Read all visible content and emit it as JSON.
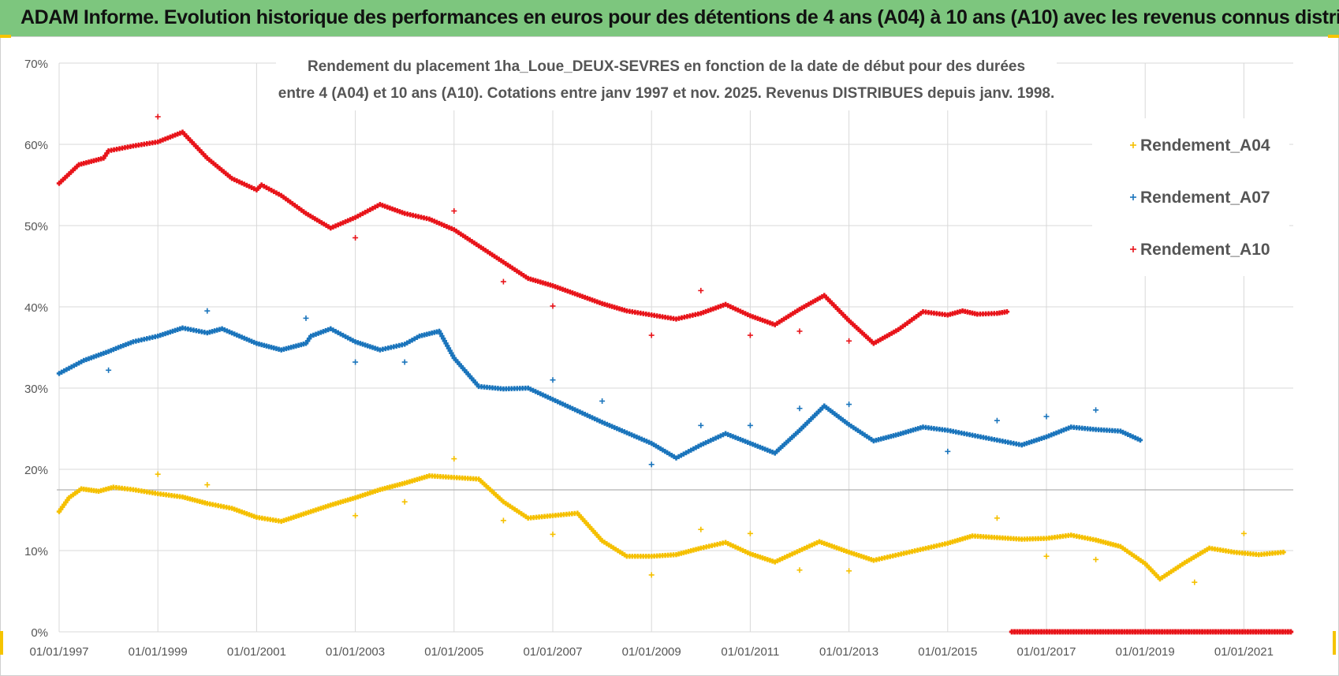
{
  "banner": {
    "title": "ADAM Informe. Evolution historique des performances en euros pour des détentions de 4 ans (A04) à 10 ans (A10) avec les revenus connus distribués"
  },
  "chart_data": {
    "type": "scatter",
    "title_line1": "Rendement du placement 1ha_Loue_DEUX-SEVRES en fonction de la date de début pour des durées",
    "title_line2": "entre 4 (A04) et 10 ans (A10).  Cotations entre janv 1997 et nov. 2025. Revenus DISTRIBUES depuis janv. 1998.",
    "x_tick_labels": [
      "01/01/1997",
      "01/01/1999",
      "01/01/2001",
      "01/01/2003",
      "01/01/2005",
      "01/01/2007",
      "01/01/2009",
      "01/01/2011",
      "01/01/2013",
      "01/01/2015",
      "01/01/2017",
      "01/01/2019",
      "01/01/2021"
    ],
    "xlim": [
      1997.0,
      2022.0
    ],
    "ylim": [
      0,
      70
    ],
    "y_tick_labels": [
      "0%",
      "10%",
      "20%",
      "30%",
      "40%",
      "50%",
      "60%",
      "70%"
    ],
    "y_tick_values": [
      0,
      10,
      20,
      30,
      40,
      50,
      60,
      70
    ],
    "grid": true,
    "legend_position": "top-right",
    "series": [
      {
        "name": "Rendement_A04",
        "color": "#f5c000",
        "points": [
          [
            1997.0,
            14.8
          ],
          [
            1997.2,
            16.5
          ],
          [
            1997.45,
            17.6
          ],
          [
            1997.8,
            17.3
          ],
          [
            1998.1,
            17.8
          ],
          [
            1998.5,
            17.5
          ],
          [
            1999.0,
            17.0
          ],
          [
            1999.5,
            16.6
          ],
          [
            2000.0,
            15.8
          ],
          [
            2000.5,
            15.2
          ],
          [
            2001.0,
            14.1
          ],
          [
            2001.5,
            13.6
          ],
          [
            2002.0,
            14.6
          ],
          [
            2002.5,
            15.6
          ],
          [
            2003.0,
            16.5
          ],
          [
            2003.5,
            17.5
          ],
          [
            2004.0,
            18.3
          ],
          [
            2004.5,
            19.2
          ],
          [
            2005.0,
            19.0
          ],
          [
            2005.5,
            18.8
          ],
          [
            2006.0,
            16.0
          ],
          [
            2006.5,
            14.0
          ],
          [
            2007.0,
            14.3
          ],
          [
            2007.5,
            14.6
          ],
          [
            2008.0,
            11.2
          ],
          [
            2008.5,
            9.3
          ],
          [
            2009.0,
            9.3
          ],
          [
            2009.5,
            9.5
          ],
          [
            2010.0,
            10.3
          ],
          [
            2010.5,
            11.0
          ],
          [
            2011.0,
            9.6
          ],
          [
            2011.5,
            8.6
          ],
          [
            2012.0,
            10.0
          ],
          [
            2012.4,
            11.1
          ],
          [
            2013.0,
            9.8
          ],
          [
            2013.5,
            8.8
          ],
          [
            2014.0,
            9.5
          ],
          [
            2014.5,
            10.2
          ],
          [
            2015.0,
            10.9
          ],
          [
            2015.5,
            11.8
          ],
          [
            2016.0,
            11.6
          ],
          [
            2016.5,
            11.4
          ],
          [
            2017.0,
            11.5
          ],
          [
            2017.5,
            11.9
          ],
          [
            2018.0,
            11.3
          ],
          [
            2018.5,
            10.5
          ],
          [
            2019.0,
            8.4
          ],
          [
            2019.3,
            6.5
          ],
          [
            2019.8,
            8.5
          ],
          [
            2020.3,
            10.3
          ],
          [
            2020.8,
            9.8
          ],
          [
            2021.3,
            9.5
          ],
          [
            2021.8,
            9.8
          ]
        ],
        "outliers": [
          [
            1999.0,
            19.4
          ],
          [
            2000.0,
            18.1
          ],
          [
            2003.0,
            14.3
          ],
          [
            2004.0,
            16.0
          ],
          [
            2005.0,
            21.3
          ],
          [
            2006.0,
            13.7
          ],
          [
            2007.0,
            12.0
          ],
          [
            2009.0,
            7.0
          ],
          [
            2010.0,
            12.6
          ],
          [
            2011.0,
            12.1
          ],
          [
            2012.0,
            7.6
          ],
          [
            2013.0,
            7.5
          ],
          [
            2016.0,
            14.0
          ],
          [
            2017.0,
            9.3
          ],
          [
            2018.0,
            8.9
          ],
          [
            2020.0,
            6.1
          ],
          [
            2021.0,
            12.1
          ]
        ]
      },
      {
        "name": "Rendement_A07",
        "color": "#1b75bc",
        "points": [
          [
            1997.0,
            31.8
          ],
          [
            1997.5,
            33.4
          ],
          [
            1998.0,
            34.5
          ],
          [
            1998.2,
            35.0
          ],
          [
            1998.5,
            35.7
          ],
          [
            1999.0,
            36.4
          ],
          [
            1999.5,
            37.4
          ],
          [
            2000.0,
            36.8
          ],
          [
            2000.3,
            37.3
          ],
          [
            2001.0,
            35.5
          ],
          [
            2001.5,
            34.7
          ],
          [
            2002.0,
            35.5
          ],
          [
            2002.1,
            36.4
          ],
          [
            2002.5,
            37.3
          ],
          [
            2003.0,
            35.7
          ],
          [
            2003.5,
            34.7
          ],
          [
            2004.0,
            35.4
          ],
          [
            2004.3,
            36.4
          ],
          [
            2004.7,
            37.0
          ],
          [
            2005.0,
            33.7
          ],
          [
            2005.5,
            30.2
          ],
          [
            2006.0,
            29.9
          ],
          [
            2006.5,
            30.0
          ],
          [
            2007.0,
            28.6
          ],
          [
            2007.5,
            27.2
          ],
          [
            2008.0,
            25.8
          ],
          [
            2008.5,
            24.5
          ],
          [
            2009.0,
            23.2
          ],
          [
            2009.5,
            21.4
          ],
          [
            2010.0,
            23.0
          ],
          [
            2010.5,
            24.4
          ],
          [
            2011.0,
            23.2
          ],
          [
            2011.5,
            22.0
          ],
          [
            2012.0,
            24.8
          ],
          [
            2012.5,
            27.8
          ],
          [
            2013.0,
            25.5
          ],
          [
            2013.5,
            23.5
          ],
          [
            2014.0,
            24.3
          ],
          [
            2014.5,
            25.2
          ],
          [
            2015.0,
            24.8
          ],
          [
            2015.5,
            24.2
          ],
          [
            2016.0,
            23.6
          ],
          [
            2016.5,
            23.0
          ],
          [
            2017.0,
            24.0
          ],
          [
            2017.5,
            25.2
          ],
          [
            2018.0,
            24.9
          ],
          [
            2018.5,
            24.7
          ],
          [
            2018.9,
            23.6
          ]
        ],
        "outliers": [
          [
            1998.0,
            32.2
          ],
          [
            2000.0,
            39.5
          ],
          [
            2002.0,
            38.6
          ],
          [
            2003.0,
            33.2
          ],
          [
            2004.0,
            33.2
          ],
          [
            2007.0,
            31.0
          ],
          [
            2008.0,
            28.4
          ],
          [
            2009.0,
            20.6
          ],
          [
            2010.0,
            25.4
          ],
          [
            2011.0,
            25.4
          ],
          [
            2012.0,
            27.5
          ],
          [
            2013.0,
            28.0
          ],
          [
            2015.0,
            22.2
          ],
          [
            2016.0,
            26.0
          ],
          [
            2017.0,
            26.5
          ],
          [
            2018.0,
            27.3
          ]
        ]
      },
      {
        "name": "Rendement_A10",
        "color": "#e8141a",
        "points": [
          [
            1997.0,
            55.2
          ],
          [
            1997.4,
            57.5
          ],
          [
            1997.9,
            58.3
          ],
          [
            1998.0,
            59.2
          ],
          [
            1998.5,
            59.8
          ],
          [
            1999.0,
            60.3
          ],
          [
            1999.5,
            61.5
          ],
          [
            2000.0,
            58.3
          ],
          [
            2000.5,
            55.8
          ],
          [
            2001.0,
            54.4
          ],
          [
            2001.1,
            55.0
          ],
          [
            2001.5,
            53.7
          ],
          [
            2002.0,
            51.5
          ],
          [
            2002.5,
            49.7
          ],
          [
            2003.0,
            51.0
          ],
          [
            2003.5,
            52.6
          ],
          [
            2004.0,
            51.5
          ],
          [
            2004.5,
            50.8
          ],
          [
            2005.0,
            49.5
          ],
          [
            2005.5,
            47.5
          ],
          [
            2006.0,
            45.5
          ],
          [
            2006.5,
            43.5
          ],
          [
            2007.0,
            42.6
          ],
          [
            2007.5,
            41.5
          ],
          [
            2008.0,
            40.4
          ],
          [
            2008.5,
            39.5
          ],
          [
            2009.0,
            39.0
          ],
          [
            2009.5,
            38.5
          ],
          [
            2010.0,
            39.2
          ],
          [
            2010.5,
            40.3
          ],
          [
            2011.0,
            38.9
          ],
          [
            2011.5,
            37.8
          ],
          [
            2012.0,
            39.7
          ],
          [
            2012.5,
            41.4
          ],
          [
            2013.0,
            38.3
          ],
          [
            2013.5,
            35.5
          ],
          [
            2014.0,
            37.2
          ],
          [
            2014.5,
            39.4
          ],
          [
            2015.0,
            39.0
          ],
          [
            2015.3,
            39.5
          ],
          [
            2015.6,
            39.1
          ],
          [
            2016.0,
            39.2
          ],
          [
            2016.2,
            39.4
          ]
        ],
        "outliers": [
          [
            1999.0,
            63.4
          ],
          [
            2003.0,
            48.5
          ],
          [
            2005.0,
            51.8
          ],
          [
            2006.0,
            43.1
          ],
          [
            2007.0,
            40.1
          ],
          [
            2009.0,
            36.5
          ],
          [
            2010.0,
            42.0
          ],
          [
            2011.0,
            36.5
          ],
          [
            2012.0,
            37.0
          ],
          [
            2013.0,
            35.8
          ]
        ],
        "zero_segment": [
          2016.3,
          2022.0
        ]
      }
    ]
  }
}
